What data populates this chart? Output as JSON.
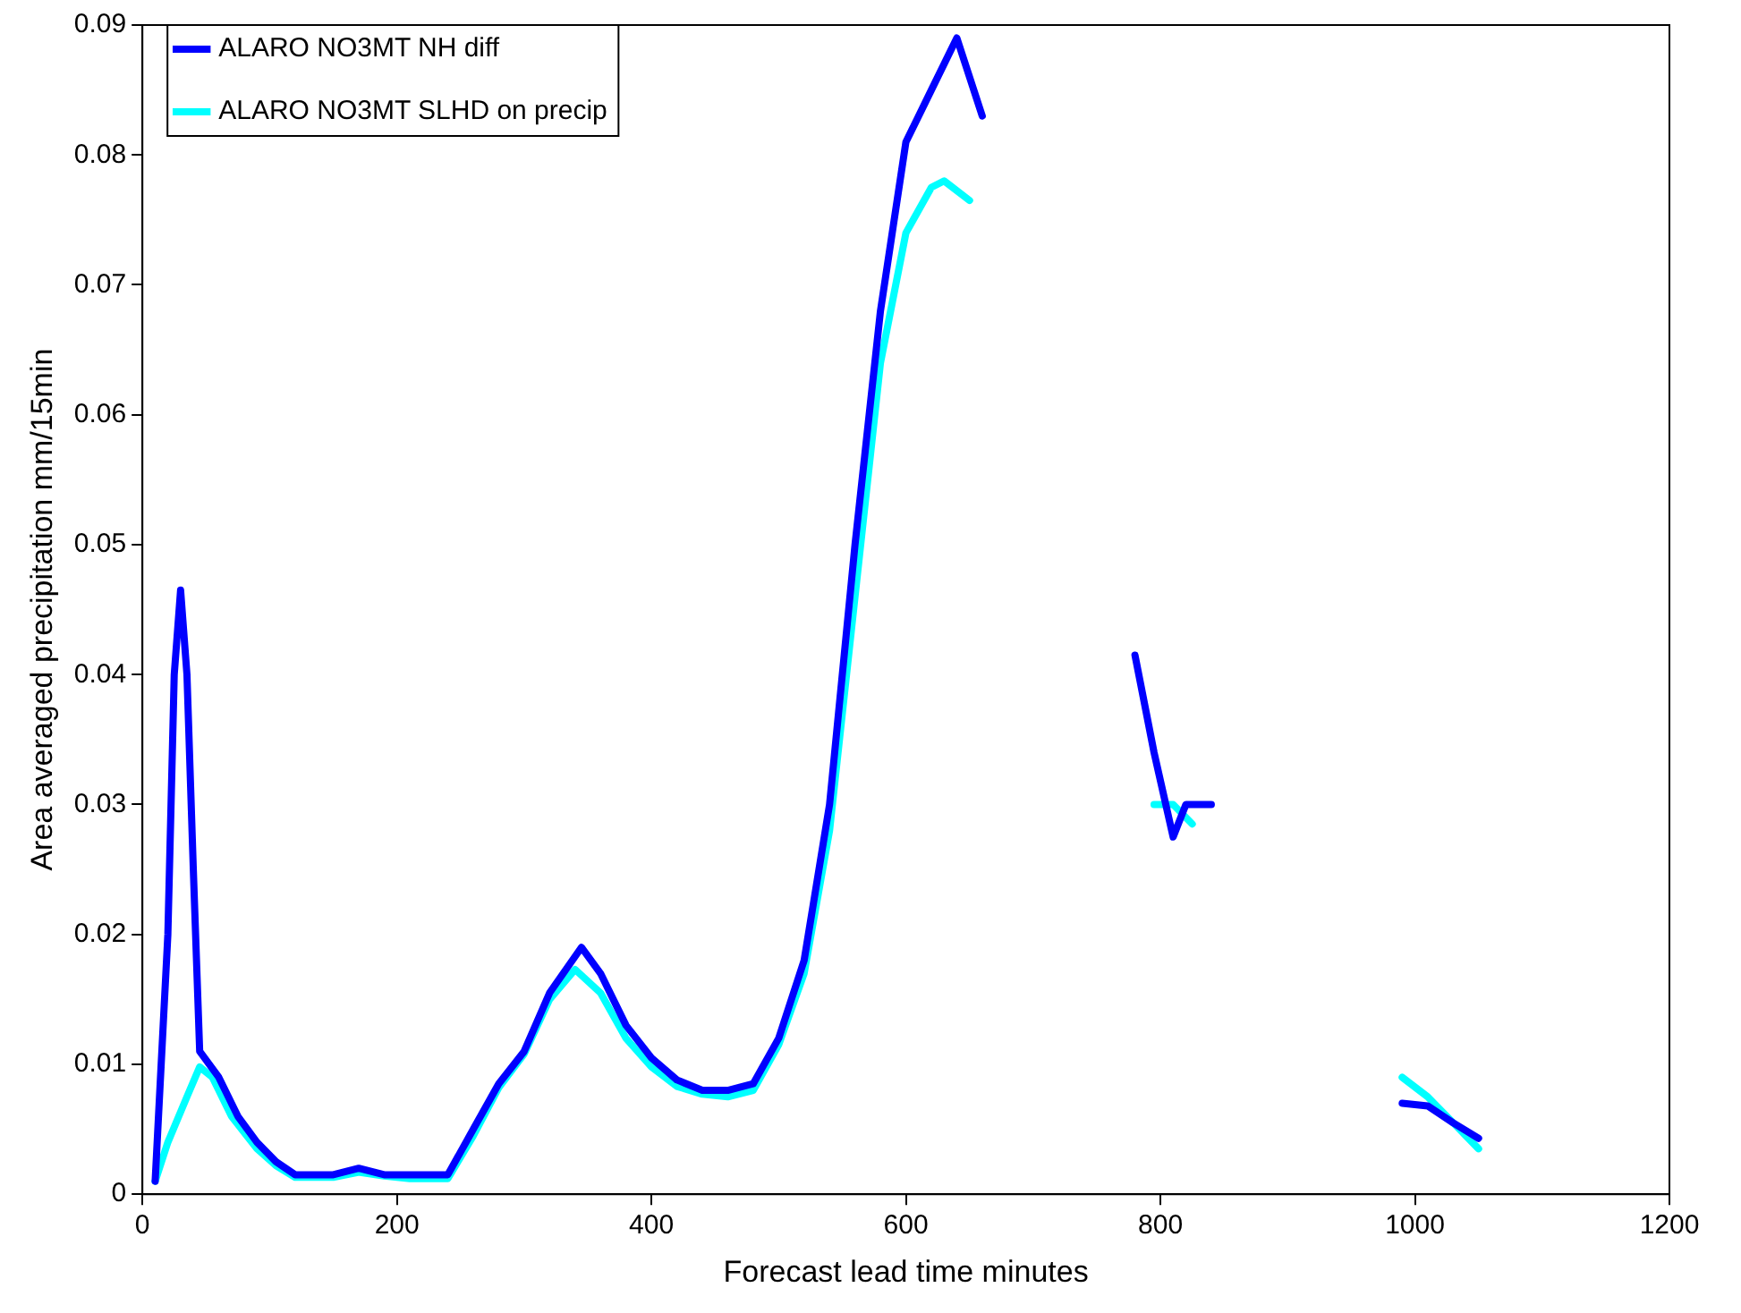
{
  "chart_data": {
    "type": "line",
    "xlabel": "Forecast lead time minutes",
    "ylabel": "Area averaged precipitation mm/15min",
    "xlim": [
      0,
      1200
    ],
    "xticks": [
      0,
      200,
      400,
      600,
      800,
      1000,
      1200
    ],
    "ylim": [
      0,
      0.09
    ],
    "yticks": [
      0,
      0.01,
      0.02,
      0.03,
      0.04,
      0.05,
      0.06,
      0.07,
      0.08,
      0.09
    ],
    "grid": false,
    "legend": "top left",
    "marker": "none",
    "line_style": "solid",
    "series": [
      {
        "name": "ALARO NO3MT NH diff",
        "color": "#0000ff",
        "x": [
          10,
          20,
          25,
          30,
          35,
          40,
          45,
          60,
          75,
          90,
          105,
          120,
          150,
          170,
          190,
          210,
          240,
          260,
          280,
          300,
          320,
          345,
          360,
          380,
          400,
          420,
          440,
          460,
          480,
          500,
          520,
          540,
          560,
          580,
          600,
          620,
          640,
          660,
          720,
          780,
          795,
          810,
          820,
          840,
          900,
          990,
          1010,
          1030,
          1050
        ],
        "values": [
          0.001,
          0.02,
          0.04,
          0.0465,
          0.04,
          0.025,
          0.011,
          0.009,
          0.006,
          0.004,
          0.0025,
          0.0015,
          0.0015,
          0.002,
          0.0015,
          0.0015,
          0.0015,
          0.005,
          0.0085,
          0.011,
          0.0155,
          0.019,
          0.017,
          0.013,
          0.0105,
          0.0088,
          0.008,
          0.008,
          0.0085,
          0.012,
          0.018,
          0.03,
          0.05,
          0.068,
          0.081,
          0.085,
          0.089,
          0.083,
          null,
          0.0415,
          0.034,
          0.0275,
          0.03,
          0.03,
          null,
          0.007,
          0.0068,
          0.0055,
          0.0043
        ]
      },
      {
        "name": "ALARO NO3MT SLHD on precip",
        "color": "#00ffff",
        "x": [
          10,
          20,
          35,
          45,
          55,
          70,
          90,
          105,
          120,
          150,
          170,
          190,
          210,
          240,
          260,
          280,
          300,
          320,
          340,
          360,
          380,
          400,
          420,
          440,
          460,
          480,
          500,
          520,
          540,
          560,
          580,
          600,
          620,
          630,
          650,
          720,
          795,
          810,
          825,
          900,
          990,
          1010,
          1030,
          1050
        ],
        "values": [
          0.001,
          0.004,
          0.0075,
          0.0098,
          0.009,
          0.006,
          0.0035,
          0.0022,
          0.0013,
          0.0013,
          0.0017,
          0.0014,
          0.0012,
          0.0012,
          0.0045,
          0.0082,
          0.0108,
          0.015,
          0.0173,
          0.0155,
          0.012,
          0.0098,
          0.0083,
          0.0077,
          0.0075,
          0.008,
          0.0115,
          0.017,
          0.028,
          0.046,
          0.064,
          0.074,
          0.0775,
          0.078,
          0.0765,
          null,
          0.03,
          0.03,
          0.0285,
          null,
          0.009,
          0.0075,
          0.0055,
          0.0035
        ]
      }
    ]
  }
}
